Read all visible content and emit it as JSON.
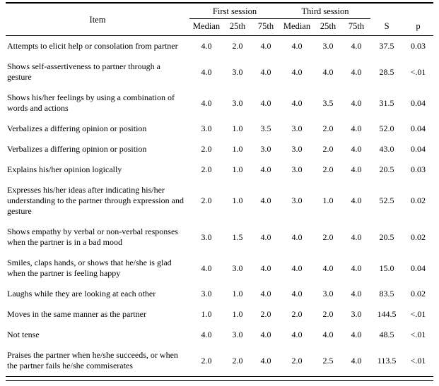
{
  "table": {
    "header": {
      "item": "Item",
      "first_session": "First session",
      "third_session": "Third session",
      "sub_headers": [
        "Median",
        "25th",
        "75th",
        "Median",
        "25th",
        "75th"
      ],
      "s": "S",
      "p": "p"
    },
    "rows": [
      {
        "item": "Attempts to elicit help or consolation from partner",
        "values": [
          "4.0",
          "2.0",
          "4.0",
          "4.0",
          "3.0",
          "4.0",
          "37.5",
          "0.03"
        ]
      },
      {
        "item": "Shows self-assertiveness to partner through a gesture",
        "values": [
          "4.0",
          "3.0",
          "4.0",
          "4.0",
          "4.0",
          "4.0",
          "28.5",
          "<.01"
        ]
      },
      {
        "item": "Shows his/her feelings by using a combination of words and actions",
        "values": [
          "4.0",
          "3.0",
          "4.0",
          "4.0",
          "3.5",
          "4.0",
          "31.5",
          "0.04"
        ]
      },
      {
        "item": "Verbalizes a differing opinion or position",
        "values": [
          "3.0",
          "1.0",
          "3.5",
          "3.0",
          "2.0",
          "4.0",
          "52.0",
          "0.04"
        ]
      },
      {
        "item": "Verbalizes a differing opinion or position",
        "values": [
          "2.0",
          "1.0",
          "3.0",
          "3.0",
          "2.0",
          "4.0",
          "43.0",
          "0.04"
        ]
      },
      {
        "item": "Explains his/her opinion logically",
        "values": [
          "2.0",
          "1.0",
          "4.0",
          "3.0",
          "2.0",
          "4.0",
          "20.5",
          "0.03"
        ]
      },
      {
        "item": "Expresses his/her ideas after indicating his/her understanding to the partner through expression and gesture",
        "values": [
          "2.0",
          "1.0",
          "4.0",
          "3.0",
          "1.0",
          "4.0",
          "52.5",
          "0.02"
        ]
      },
      {
        "item": "Shows empathy by verbal or non-verbal responses when the partner is in a bad mood",
        "values": [
          "3.0",
          "1.5",
          "4.0",
          "4.0",
          "2.0",
          "4.0",
          "20.5",
          "0.02"
        ]
      },
      {
        "item": "Smiles, claps hands, or shows that he/she is glad when the partner is feeling happy",
        "values": [
          "4.0",
          "3.0",
          "4.0",
          "4.0",
          "4.0",
          "4.0",
          "15.0",
          "0.04"
        ]
      },
      {
        "item": "Laughs while they are looking at each other",
        "values": [
          "3.0",
          "1.0",
          "4.0",
          "4.0",
          "3.0",
          "4.0",
          "83.5",
          "0.02"
        ]
      },
      {
        "item": "Moves in the same manner as the partner",
        "values": [
          "1.0",
          "1.0",
          "2.0",
          "2.0",
          "2.0",
          "3.0",
          "144.5",
          "<.01"
        ]
      },
      {
        "item": "Not tense",
        "values": [
          "4.0",
          "3.0",
          "4.0",
          "4.0",
          "4.0",
          "4.0",
          "48.5",
          "<.01"
        ]
      },
      {
        "item": "Praises the partner when he/she succeeds, or when the partner fails he/she commiserates",
        "values": [
          "2.0",
          "2.0",
          "4.0",
          "2.0",
          "2.5",
          "4.0",
          "113.5",
          "<.01"
        ]
      }
    ]
  }
}
